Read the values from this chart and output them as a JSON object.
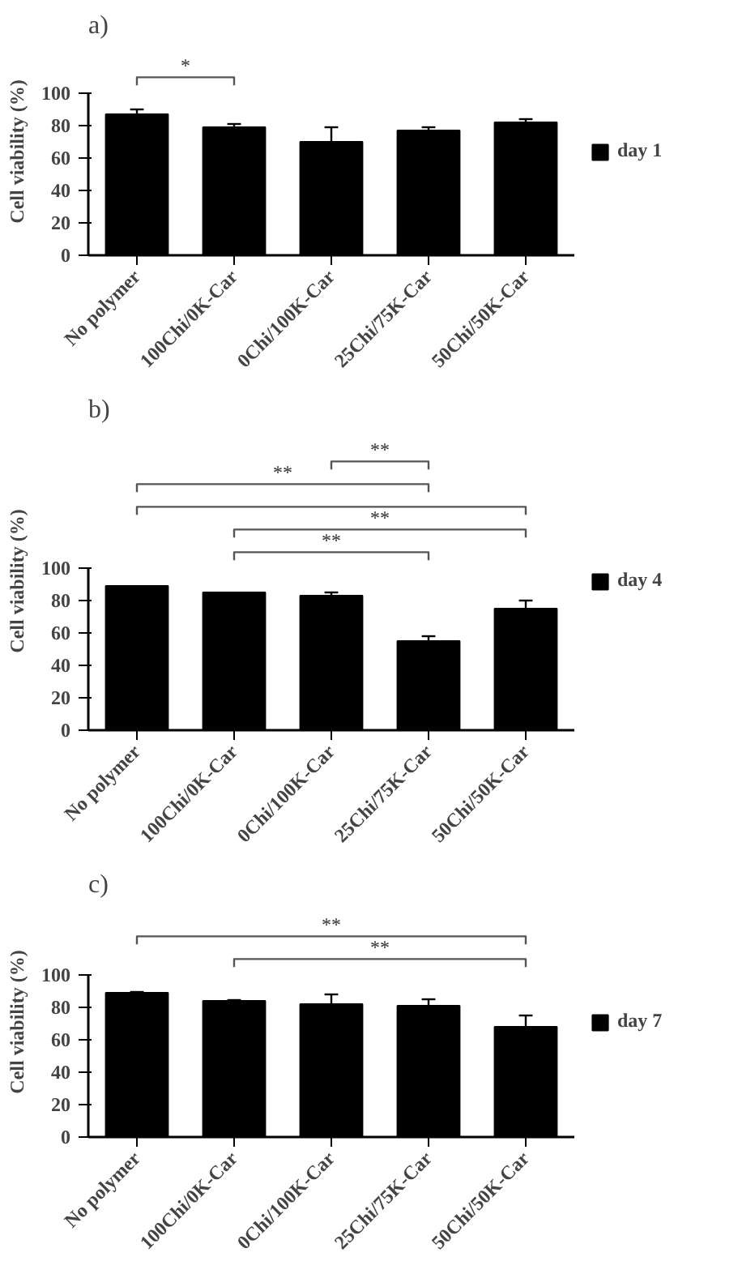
{
  "chart_data": [
    {
      "type": "bar",
      "title": "a)",
      "ylabel": "Cell viability (%)",
      "categories": [
        "No polymer",
        "100Chi/0K-Car",
        "0Chi/100K-Car",
        "25Chi/75K-Car",
        "50Chi/50K-Car"
      ],
      "series": [
        {
          "name": "day 1",
          "color": "#000000",
          "values": [
            87,
            79,
            70,
            77,
            82
          ],
          "errors": [
            3,
            2,
            9,
            2,
            2
          ]
        }
      ],
      "ylim": [
        0,
        100
      ],
      "yticks": [
        0,
        20,
        40,
        60,
        80,
        100
      ],
      "grid": false,
      "legend": "right",
      "annotations": [
        "*"
      ]
    },
    {
      "type": "bar",
      "title": "b)",
      "ylabel": "Cell viability (%)",
      "categories": [
        "No polymer",
        "100Chi/0K-Car",
        "0Chi/100K-Car",
        "25Chi/75K-Car",
        "50Chi/50K-Car"
      ],
      "series": [
        {
          "name": "day 4",
          "color": "#000000",
          "values": [
            89,
            85,
            83,
            55,
            75
          ],
          "errors": [
            null,
            null,
            2,
            3,
            5
          ]
        }
      ],
      "ylim": [
        0,
        100
      ],
      "yticks": [
        0,
        20,
        40,
        60,
        80,
        100
      ],
      "grid": false,
      "legend": "right",
      "annotations": [
        "**",
        "**",
        "**",
        "**"
      ]
    },
    {
      "type": "bar",
      "title": "c)",
      "ylabel": "Cell viability (%)",
      "categories": [
        "No polymer",
        "100Chi/0K-Car",
        "0Chi/100K-Car",
        "25Chi/75K-Car",
        "50Chi/50K-Car"
      ],
      "series": [
        {
          "name": "day 7",
          "color": "#000000",
          "values": [
            89,
            84,
            82,
            81,
            68
          ],
          "errors": [
            0.5,
            0.5,
            6,
            4,
            7
          ]
        }
      ],
      "ylim": [
        0,
        100
      ],
      "yticks": [
        0,
        20,
        40,
        60,
        80,
        100
      ],
      "grid": false,
      "legend": "right",
      "annotations": [
        "**",
        "**"
      ]
    }
  ]
}
